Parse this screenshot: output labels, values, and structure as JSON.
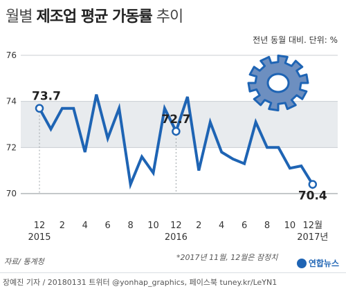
{
  "title_light": "월별",
  "title_bold": "제조업 평균 가동률",
  "title_light2": "추이",
  "unit": "전년 동월 대비. 단위: %",
  "source": "자료/ 통계청",
  "note": "*2017년 11월, 12월은 잠정치",
  "credit": "장예진 기자 / 20180131 트위터 @yonhap_graphics, 페이스북 tuney.kr/LeYN1",
  "logo": "연합뉴스",
  "icon": "gear-icon",
  "colors": {
    "line": "#1e64b4",
    "band": "#e8ebee",
    "grid": "#c8cdd2"
  },
  "chart_data": {
    "type": "line",
    "ylim": [
      70,
      76
    ],
    "yticks": [
      70,
      72,
      74,
      76
    ],
    "x_tick_labels": [
      "12",
      "2",
      "4",
      "6",
      "8",
      "10",
      "12",
      "2",
      "4",
      "6",
      "8",
      "10",
      "12월"
    ],
    "year_labels": [
      "2015",
      "2016",
      "2017년"
    ],
    "x": [
      "2015-12",
      "2016-01",
      "2016-02",
      "2016-03",
      "2016-04",
      "2016-05",
      "2016-06",
      "2016-07",
      "2016-08",
      "2016-09",
      "2016-10",
      "2016-11",
      "2016-12",
      "2017-01",
      "2017-02",
      "2017-03",
      "2017-04",
      "2017-05",
      "2017-06",
      "2017-07",
      "2017-08",
      "2017-09",
      "2017-10",
      "2017-11",
      "2017-12"
    ],
    "values": [
      73.7,
      72.8,
      73.7,
      73.7,
      71.8,
      74.3,
      72.4,
      73.7,
      70.4,
      71.6,
      70.9,
      73.7,
      72.7,
      74.2,
      71.0,
      73.1,
      71.8,
      71.5,
      71.3,
      73.1,
      72.0,
      72.0,
      71.1,
      71.2,
      70.4
    ],
    "labeled_points": [
      {
        "index": 0,
        "label": "73.7"
      },
      {
        "index": 12,
        "label": "72.7"
      },
      {
        "index": 24,
        "label": "70.4"
      }
    ]
  }
}
